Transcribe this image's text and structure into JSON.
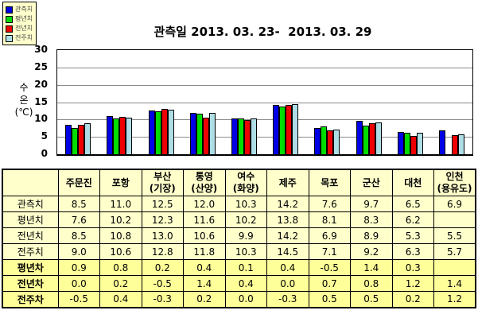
{
  "chart": {
    "title": "관측일 2013. 03. 23-  2013. 03. 29",
    "y_axis_title": "수\n온\n(℃)"
  },
  "legend": {
    "items": [
      {
        "key": "observed",
        "label": "관측치",
        "color": "#0000E6"
      },
      {
        "key": "normal",
        "label": "평년치",
        "color": "#00DC00"
      },
      {
        "key": "prev-year",
        "label": "전년치",
        "color": "#EE0000"
      },
      {
        "key": "prev-week",
        "label": "전주치",
        "color": "#AEDDE6"
      }
    ]
  },
  "chart_data": {
    "type": "bar",
    "title": "관측일 2013. 03. 23-  2013. 03. 29",
    "xlabel": "",
    "ylabel": "수온(℃)",
    "ylim": [
      0,
      30
    ],
    "yticks": [
      0,
      5,
      10,
      15,
      20,
      25,
      30
    ],
    "grid": true,
    "legend_position": "top-left",
    "categories": [
      "주문진",
      "포항",
      "부산(기장)",
      "통영(산양)",
      "여수(화양)",
      "제주",
      "목포",
      "군산",
      "대천",
      "인천(용유도)"
    ],
    "series": [
      {
        "key": "observed",
        "name": "관측치",
        "color": "#0000E6",
        "values": [
          8.5,
          11.0,
          12.5,
          12.0,
          10.3,
          14.2,
          7.6,
          9.7,
          6.5,
          6.9
        ]
      },
      {
        "key": "normal",
        "name": "평년치",
        "color": "#00DC00",
        "values": [
          7.6,
          10.2,
          12.3,
          11.6,
          10.2,
          13.8,
          8.1,
          8.3,
          6.2,
          null
        ]
      },
      {
        "key": "prev-year",
        "name": "전년치",
        "color": "#EE0000",
        "values": [
          8.5,
          10.8,
          13.0,
          10.6,
          9.9,
          14.2,
          6.9,
          8.9,
          5.3,
          5.5
        ]
      },
      {
        "key": "prev-week",
        "name": "전주치",
        "color": "#AEDDE6",
        "values": [
          9.0,
          10.6,
          12.8,
          11.8,
          10.3,
          14.5,
          7.1,
          9.2,
          6.3,
          5.7
        ]
      }
    ]
  },
  "table": {
    "corner_label": "",
    "columns": [
      "주문진",
      "포항",
      "부산\n(기장)",
      "통영\n(산양)",
      "여수\n(화양)",
      "제주",
      "목포",
      "군산",
      "대천",
      "인천\n(용유도)"
    ],
    "rows": [
      {
        "label": "관측치",
        "section": "value",
        "values": [
          "8.5",
          "11.0",
          "12.5",
          "12.0",
          "10.3",
          "14.2",
          "7.6",
          "9.7",
          "6.5",
          "6.9"
        ]
      },
      {
        "label": "평년치",
        "section": "value",
        "values": [
          "7.6",
          "10.2",
          "12.3",
          "11.6",
          "10.2",
          "13.8",
          "8.1",
          "8.3",
          "6.2",
          ""
        ]
      },
      {
        "label": "전년치",
        "section": "value",
        "values": [
          "8.5",
          "10.8",
          "13.0",
          "10.6",
          "9.9",
          "14.2",
          "6.9",
          "8.9",
          "5.3",
          "5.5"
        ]
      },
      {
        "label": "전주치",
        "section": "value",
        "values": [
          "9.0",
          "10.6",
          "12.8",
          "11.8",
          "10.3",
          "14.5",
          "7.1",
          "9.2",
          "6.3",
          "5.7"
        ]
      },
      {
        "label": "평년차",
        "section": "diff",
        "values": [
          "0.9",
          "0.8",
          "0.2",
          "0.4",
          "0.1",
          "0.4",
          "-0.5",
          "1.4",
          "0.3",
          ""
        ]
      },
      {
        "label": "전년차",
        "section": "diff",
        "values": [
          "0.0",
          "0.2",
          "-0.5",
          "1.4",
          "0.4",
          "0.0",
          "0.7",
          "0.8",
          "1.2",
          "1.4"
        ]
      },
      {
        "label": "전주차",
        "section": "diff",
        "values": [
          "-0.5",
          "0.4",
          "-0.3",
          "0.2",
          "0.0",
          "-0.3",
          "0.5",
          "0.5",
          "0.2",
          "1.2"
        ]
      }
    ]
  },
  "colors": {
    "table_value_bg": "#FFFFCC",
    "table_diff_bg": "#FFFF99",
    "legend_bg": "#FFFFCC",
    "gridline": "#8a8a8a",
    "border": "#000000"
  }
}
